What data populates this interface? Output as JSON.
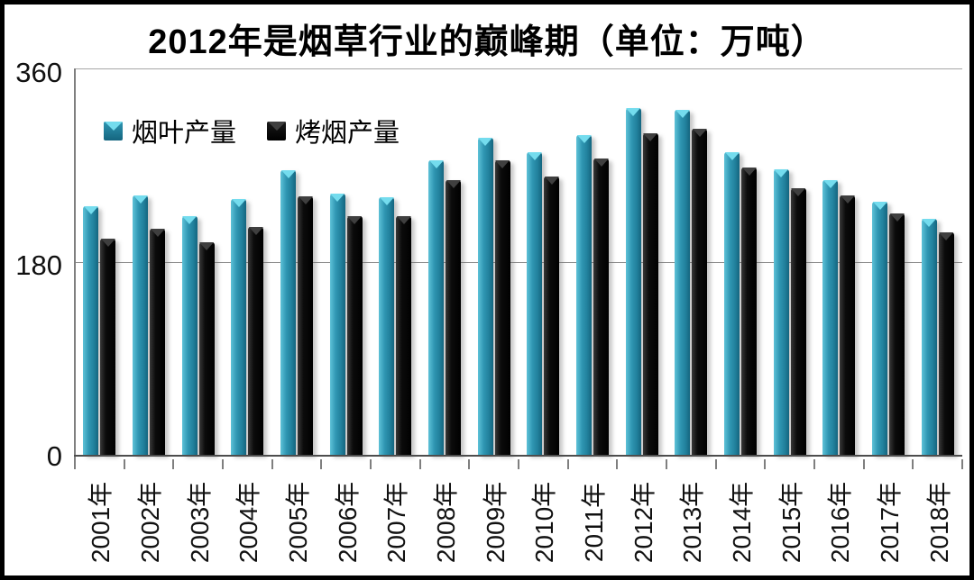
{
  "title": "2012年是烟草行业的巅峰期（单位：万吨）",
  "accent_colors": {
    "teal_bar": "#2f96b2",
    "teal_cap": "#74dcee",
    "black_bar": "#0b0b0b",
    "black_cap": "#3f3f3f",
    "gridline": "#8c8c8c",
    "axis": "#4d4d4d"
  },
  "chart_data": {
    "type": "bar",
    "title": "2012年是烟草行业的巅峰期（单位：万吨）",
    "unit": "万吨",
    "categories": [
      "2001年",
      "2002年",
      "2003年",
      "2004年",
      "2005年",
      "2006年",
      "2007年",
      "2008年",
      "2009年",
      "2010年",
      "2011年",
      "2012年",
      "2013年",
      "2014年",
      "2015年",
      "2016年",
      "2017年",
      "2018年"
    ],
    "series": [
      {
        "name": "烟叶产量",
        "color": "#2f96b2",
        "cap_color": "#74dcee",
        "values": [
          232,
          242,
          222,
          238,
          265,
          243,
          240,
          274,
          295,
          282,
          298,
          323,
          321,
          282,
          266,
          256,
          236,
          220
        ]
      },
      {
        "name": "烤烟产量",
        "color": "#0b0b0b",
        "cap_color": "#3f3f3f",
        "values": [
          201,
          211,
          198,
          212,
          241,
          222,
          222,
          256,
          274,
          259,
          276,
          300,
          304,
          268,
          248,
          242,
          225,
          207
        ]
      }
    ],
    "xlabel": "",
    "ylabel": "",
    "ylim": [
      0,
      360
    ],
    "yticks": [
      0,
      180,
      360
    ],
    "ytick_labels": [
      "0",
      "180",
      "360"
    ],
    "grid": "horizontal",
    "legend_position": "top-left"
  }
}
